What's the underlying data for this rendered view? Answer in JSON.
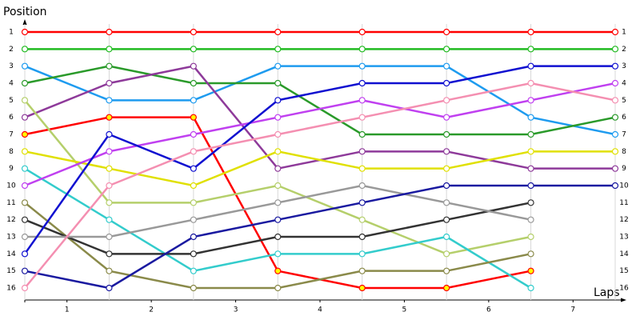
{
  "chart_data": {
    "type": "line",
    "y_label": "Position",
    "x_label": "Laps",
    "x": [
      0,
      1,
      2,
      3,
      4,
      5,
      6,
      7
    ],
    "xlim": [
      0,
      7
    ],
    "xticks": [
      {
        "value": 0.5,
        "label": "1"
      },
      {
        "value": 1.5,
        "label": "2"
      },
      {
        "value": 2.5,
        "label": "3"
      },
      {
        "value": 3.5,
        "label": "4"
      },
      {
        "value": 4.5,
        "label": "5"
      },
      {
        "value": 5.5,
        "label": "6"
      },
      {
        "value": 6.5,
        "label": "7"
      }
    ],
    "ylim": [
      1,
      16
    ],
    "y_inverted": true,
    "yticks": [
      1,
      2,
      3,
      4,
      5,
      6,
      7,
      8,
      9,
      10,
      11,
      12,
      13,
      14,
      15,
      16
    ],
    "grid": true,
    "series": [
      {
        "color": "#ff0000",
        "values": [
          1,
          1,
          1,
          1,
          1,
          1,
          1,
          1
        ]
      },
      {
        "color": "#22bb22",
        "values": [
          2,
          2,
          2,
          2,
          2,
          2,
          2,
          2
        ]
      },
      {
        "color": "#1e9bef",
        "values": [
          3,
          5,
          5,
          3,
          3,
          3,
          6,
          7
        ]
      },
      {
        "color": "#2a9a2a",
        "values": [
          4,
          3,
          4,
          4,
          7,
          7,
          7,
          6
        ]
      },
      {
        "color": "#8e3a9a",
        "values": [
          6,
          4,
          3,
          9,
          8,
          8,
          9,
          9
        ]
      },
      {
        "color": "#ff0000",
        "marker_color": "#ffff00",
        "values": [
          7,
          6,
          6,
          15,
          16,
          16,
          15,
          null
        ]
      },
      {
        "color": "#b5cf6b",
        "values": [
          5,
          11,
          11,
          10,
          12,
          14,
          13,
          null
        ]
      },
      {
        "color": "#e0e000",
        "values": [
          8,
          9,
          10,
          8,
          9,
          9,
          8,
          8
        ]
      },
      {
        "color": "#33cccc",
        "values": [
          9,
          12,
          15,
          14,
          14,
          13,
          16,
          null
        ]
      },
      {
        "color": "#c040f0",
        "values": [
          10,
          8,
          7,
          6,
          5,
          6,
          5,
          4
        ]
      },
      {
        "color": "#8a8a4a",
        "values": [
          11,
          15,
          16,
          16,
          15,
          15,
          14,
          null
        ]
      },
      {
        "color": "#333333",
        "values": [
          12,
          14,
          14,
          13,
          13,
          12,
          11,
          null
        ]
      },
      {
        "color": "#999999",
        "values": [
          13,
          13,
          12,
          11,
          10,
          11,
          12,
          null
        ]
      },
      {
        "color": "#1010d0",
        "values": [
          14,
          7,
          9,
          5,
          4,
          4,
          3,
          3
        ]
      },
      {
        "color": "#1a1aa0",
        "values": [
          15,
          16,
          13,
          12,
          11,
          10,
          10,
          10
        ]
      },
      {
        "color": "#f48fb1",
        "values": [
          16,
          10,
          8,
          7,
          6,
          5,
          4,
          5
        ]
      }
    ]
  }
}
